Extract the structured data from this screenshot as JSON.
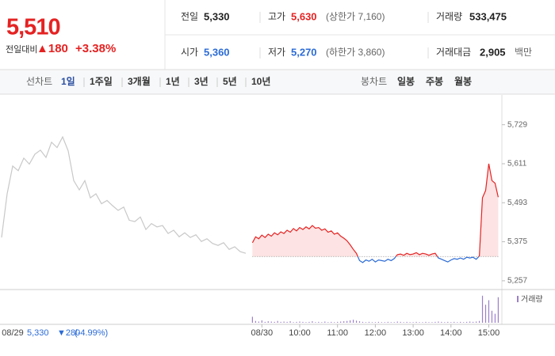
{
  "header": {
    "price": "5,510",
    "change_label": "전일대비",
    "change": "▲180",
    "change_pct": "+3.38%",
    "stats": [
      [
        {
          "label": "전일",
          "value": "5,330"
        },
        {
          "label": "고가",
          "value": "5,630",
          "note": "(상한가 7,160)",
          "tone": "up"
        },
        {
          "label": "거래량",
          "value": "533,475"
        }
      ],
      [
        {
          "label": "시가",
          "value": "5,360",
          "tone": "down"
        },
        {
          "label": "저가",
          "value": "5,270",
          "note": "(하한가 3,860)",
          "tone": "down"
        },
        {
          "label": "거래대금",
          "value": "2,905",
          "note": "백만"
        }
      ]
    ]
  },
  "toolbar": {
    "line_label": "선차트",
    "periods": [
      "1일",
      "1주일",
      "3개월",
      "1년",
      "3년",
      "5년",
      "10년"
    ],
    "active": 0,
    "candle_label": "봉차트",
    "candles": [
      "일봉",
      "주봉",
      "월봉"
    ]
  },
  "chart_data": {
    "type": "line",
    "ylim": [
      5240,
      5800
    ],
    "yticks": [
      {
        "value": 5257,
        "label": "5,257"
      },
      {
        "value": 5375,
        "label": "5,375"
      },
      {
        "value": 5493,
        "label": "5,493"
      },
      {
        "value": 5611,
        "label": "5,611"
      },
      {
        "value": 5729,
        "label": "5,729"
      }
    ],
    "xlim": [
      -17.5,
      375
    ],
    "xticks": [
      {
        "value": 0,
        "label": "08/30"
      },
      {
        "value": 60,
        "label": "10:00"
      },
      {
        "value": 120,
        "label": "11:00"
      },
      {
        "value": 180,
        "label": "12:00"
      },
      {
        "value": 240,
        "label": "13:00"
      },
      {
        "value": 300,
        "label": "14:00"
      },
      {
        "value": 360,
        "label": "15:00"
      }
    ],
    "prev_day": {
      "label": "08/29",
      "info": [
        "5,330",
        "▼280",
        "(-4.99%)"
      ],
      "color": "#c8c8c8",
      "values": [
        5388,
        5520,
        5604,
        5590,
        5628,
        5610,
        5640,
        5652,
        5630,
        5676,
        5660,
        5692,
        5650,
        5560,
        5532,
        5560,
        5508,
        5520,
        5490,
        5500,
        5484,
        5470,
        5480,
        5440,
        5436,
        5450,
        5412,
        5430,
        5420,
        5424,
        5400,
        5410,
        5390,
        5402,
        5388,
        5396,
        5376,
        5384,
        5370,
        5364,
        5372,
        5352,
        5360,
        5345,
        5340
      ]
    },
    "reference": 5330,
    "series": [
      {
        "color": "#e52222",
        "color_down": "#2b6bd6",
        "fill": "#fde3e3",
        "x": [
          -15,
          -10,
          -5,
          0,
          5,
          10,
          15,
          20,
          25,
          30,
          35,
          40,
          45,
          50,
          55,
          60,
          65,
          70,
          75,
          80,
          85,
          90,
          95,
          100,
          105,
          110,
          115,
          120,
          125,
          130,
          135,
          140,
          145,
          150,
          155,
          160,
          165,
          170,
          175,
          180,
          185,
          190,
          195,
          200,
          205,
          210,
          215,
          220,
          225,
          230,
          235,
          240,
          245,
          250,
          255,
          260,
          265,
          270,
          275,
          280,
          285,
          290,
          295,
          300,
          305,
          310,
          315,
          320,
          325,
          330,
          335,
          340,
          345,
          350,
          355,
          360,
          365,
          370,
          375
        ],
        "values": [
          5372,
          5390,
          5384,
          5395,
          5388,
          5398,
          5392,
          5402,
          5396,
          5405,
          5400,
          5410,
          5404,
          5415,
          5408,
          5418,
          5412,
          5420,
          5414,
          5424,
          5416,
          5418,
          5410,
          5414,
          5404,
          5408,
          5398,
          5402,
          5392,
          5386,
          5378,
          5366,
          5352,
          5340,
          5318,
          5312,
          5320,
          5316,
          5322,
          5314,
          5320,
          5318,
          5316,
          5322,
          5318,
          5324,
          5336,
          5338,
          5334,
          5340,
          5336,
          5338,
          5342,
          5336,
          5340,
          5338,
          5334,
          5338,
          5340,
          5326,
          5322,
          5318,
          5314,
          5320,
          5324,
          5322,
          5326,
          5322,
          5328,
          5326,
          5328,
          5322,
          5332,
          5508,
          5530,
          5611,
          5560,
          5552,
          5510
        ]
      }
    ],
    "volume": {
      "name": "거래량",
      "color": "#9b7fc9",
      "ylim": [
        0,
        100
      ],
      "values": [
        20,
        6,
        4,
        8,
        3,
        5,
        4,
        3,
        6,
        3,
        4,
        3,
        5,
        2,
        3,
        4,
        3,
        2,
        3,
        5,
        2,
        3,
        2,
        4,
        2,
        3,
        2,
        3,
        4,
        5,
        6,
        8,
        10,
        7,
        5,
        3,
        2,
        3,
        2,
        2,
        3,
        2,
        2,
        3,
        2,
        2,
        4,
        3,
        2,
        3,
        2,
        2,
        3,
        2,
        2,
        3,
        2,
        2,
        3,
        4,
        3,
        2,
        3,
        2,
        3,
        2,
        3,
        2,
        3,
        4,
        3,
        4,
        6,
        90,
        60,
        75,
        40,
        30,
        85
      ]
    }
  }
}
